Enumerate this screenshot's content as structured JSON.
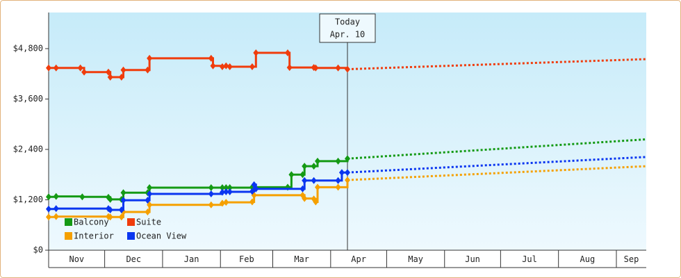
{
  "chart_data": {
    "type": "step-line",
    "ylim": [
      0,
      5660
    ],
    "yticks": [
      {
        "value": 0,
        "label": "$0"
      },
      {
        "value": 1200,
        "label": "$1,200"
      },
      {
        "value": 2400,
        "label": "$2,400"
      },
      {
        "value": 3600,
        "label": "$3,600"
      },
      {
        "value": 4800,
        "label": "$4,800"
      }
    ],
    "xlim": [
      0,
      320
    ],
    "xticks": [
      {
        "value": 0,
        "label": "Nov"
      },
      {
        "value": 30,
        "label": "Dec"
      },
      {
        "value": 61,
        "label": "Jan"
      },
      {
        "value": 92,
        "label": "Feb"
      },
      {
        "value": 120,
        "label": "Mar"
      },
      {
        "value": 151,
        "label": "Apr"
      },
      {
        "value": 181,
        "label": "May"
      },
      {
        "value": 212,
        "label": "Jun"
      },
      {
        "value": 242,
        "label": "Jul"
      },
      {
        "value": 273,
        "label": "Aug"
      },
      {
        "value": 304,
        "label": "Sep"
      }
    ],
    "annotation": {
      "x": 160,
      "lines": [
        "Today",
        "Apr. 10"
      ]
    },
    "series": [
      {
        "name": "Balcony",
        "color": "#149a14",
        "x": [
          0,
          4,
          18,
          32,
          33,
          39,
          40,
          53,
          54,
          87,
          93,
          95,
          97,
          109,
          128,
          130,
          136,
          137,
          142,
          144,
          155,
          160
        ],
        "values": [
          1270,
          1280,
          1270,
          1260,
          1210,
          1210,
          1370,
          1370,
          1490,
          1490,
          1490,
          1490,
          1490,
          1500,
          1500,
          1800,
          1800,
          2000,
          2000,
          2120,
          2120,
          2180
        ],
        "forecast_x": [
          320
        ],
        "forecast_values": [
          2640
        ]
      },
      {
        "name": "Suite",
        "color": "#f03c0c",
        "x": [
          0,
          4,
          17,
          19,
          32,
          33,
          39,
          40,
          53,
          54,
          87,
          88,
          93,
          95,
          97,
          109,
          111,
          128,
          129,
          142,
          143,
          155,
          160
        ],
        "values": [
          4340,
          4340,
          4340,
          4240,
          4240,
          4120,
          4120,
          4290,
          4290,
          4570,
          4570,
          4390,
          4370,
          4390,
          4370,
          4370,
          4700,
          4700,
          4350,
          4350,
          4340,
          4340,
          4310
        ],
        "forecast_x": [
          320
        ],
        "forecast_values": [
          4550
        ]
      },
      {
        "name": "Interior",
        "color": "#f5a000",
        "x": [
          0,
          4,
          32,
          33,
          39,
          40,
          53,
          54,
          87,
          93,
          95,
          109,
          110,
          136,
          137,
          142,
          143,
          144,
          155,
          160
        ],
        "values": [
          790,
          800,
          800,
          790,
          790,
          910,
          910,
          1080,
          1080,
          1120,
          1140,
          1150,
          1310,
          1310,
          1230,
          1220,
          1150,
          1500,
          1500,
          1670
        ],
        "forecast_x": [
          320
        ],
        "forecast_values": [
          2000
        ]
      },
      {
        "name": "Ocean View",
        "color": "#0a36f0",
        "x": [
          0,
          4,
          32,
          33,
          39,
          40,
          53,
          54,
          87,
          93,
          95,
          97,
          109,
          110,
          111,
          136,
          137,
          142,
          155,
          157,
          160
        ],
        "values": [
          980,
          990,
          990,
          960,
          960,
          1190,
          1190,
          1340,
          1340,
          1380,
          1390,
          1390,
          1400,
          1560,
          1460,
          1460,
          1660,
          1660,
          1660,
          1850,
          1850
        ],
        "forecast_x": [
          320
        ],
        "forecast_values": [
          2220
        ]
      }
    ]
  }
}
